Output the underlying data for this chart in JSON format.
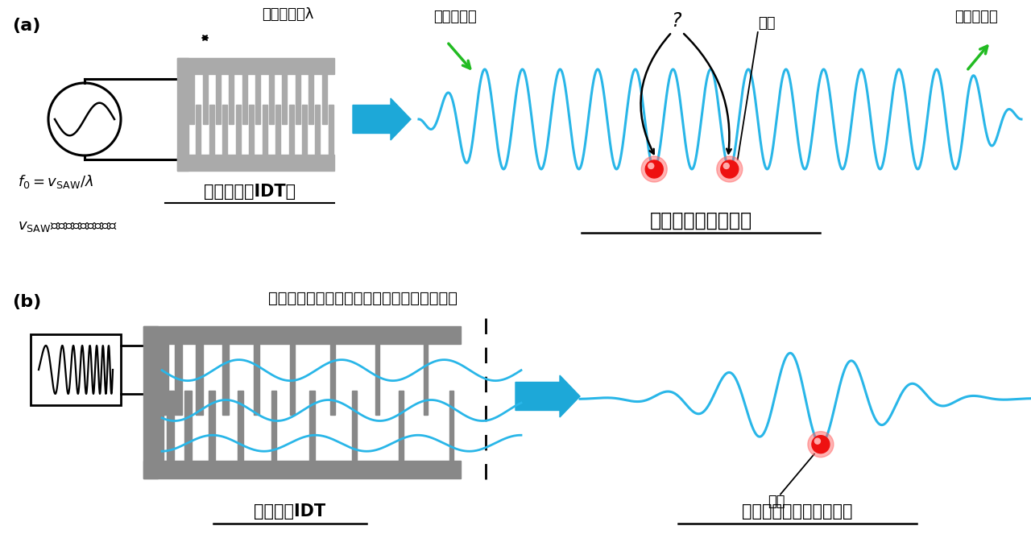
{
  "bg_color": "#ffffff",
  "gray_color": "#aaaaaa",
  "gray_dark": "#888888",
  "blue_wave_color": "#29b6e8",
  "green_arrow_color": "#22bb22",
  "cyan_arrow_color": "#1da8d8",
  "red_dot_color": "#ee1111",
  "black": "#000000",
  "label_a": "(a)",
  "label_b": "(b)",
  "title_a_idt": "楂型電極（IDT）",
  "title_a_burst": "表面弾性波バースト",
  "title_b_chirp": "チャープIDT",
  "title_b_pulse": "表面弾性波の孤立パルス",
  "text_period": "楂の周期：λ",
  "text_f0": "$f_0 = v_\\mathrm{SAW}/\\lambda$",
  "text_vsaw_label": "$v_\\mathrm{SAW}$：表面弾性波の速さ",
  "text_rising": "立ち上がり",
  "text_falling": "立ち下がり",
  "text_electron": "電子",
  "text_question": "?",
  "text_wide_band": "広い帯域の表面弾性波を同位相で重ね合わせ"
}
